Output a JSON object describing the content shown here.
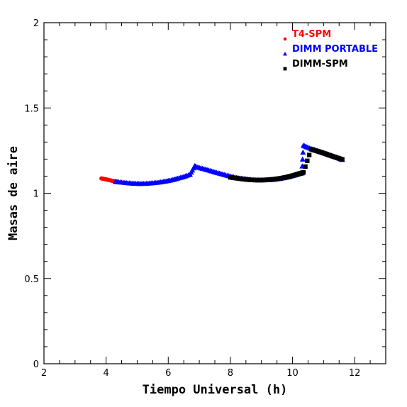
{
  "chart_data": {
    "type": "scatter",
    "xlabel": "Tiempo Universal (h)",
    "ylabel": "Masas de aire",
    "xlim": [
      2,
      13
    ],
    "ylim": [
      0,
      2
    ],
    "xticks": [
      2,
      4,
      6,
      8,
      10,
      12
    ],
    "yticks": [
      0,
      0.5,
      1,
      1.5,
      2
    ],
    "xtick_labels": [
      "2",
      "4",
      "6",
      "8",
      "10",
      "12"
    ],
    "ytick_labels": [
      "0",
      "0.5",
      "1",
      "1.5",
      "2"
    ],
    "legend_position": "top-right",
    "series": [
      {
        "name": "T4-SPM",
        "color": "#ff0000",
        "marker": "circle",
        "x": [
          3.85,
          3.95,
          4.05,
          4.15,
          4.25,
          4.35
        ],
        "y": [
          1.087,
          1.083,
          1.079,
          1.075,
          1.071,
          1.068
        ]
      },
      {
        "name": "DIMM PORTABLE",
        "color": "#0000ff",
        "marker": "triangle",
        "x": [
          4.3,
          4.5,
          4.7,
          4.9,
          5.1,
          5.3,
          5.5,
          5.7,
          5.9,
          6.1,
          6.3,
          6.5,
          6.7,
          6.85,
          6.9,
          7.1,
          7.3,
          7.5,
          7.7,
          7.9,
          8.1,
          8.3,
          8.5,
          8.7,
          8.9,
          9.1,
          9.3,
          9.5,
          9.7,
          9.9,
          10.1,
          10.3,
          10.35,
          10.5,
          10.7,
          10.9,
          11.1,
          11.3,
          11.5,
          11.6
        ],
        "y": [
          1.068,
          1.064,
          1.06,
          1.057,
          1.056,
          1.057,
          1.06,
          1.064,
          1.07,
          1.077,
          1.087,
          1.097,
          1.11,
          1.16,
          1.155,
          1.145,
          1.135,
          1.124,
          1.114,
          1.104,
          1.095,
          1.088,
          1.083,
          1.079,
          1.077,
          1.077,
          1.079,
          1.083,
          1.089,
          1.097,
          1.107,
          1.118,
          1.28,
          1.268,
          1.255,
          1.243,
          1.231,
          1.218,
          1.205,
          1.197
        ]
      },
      {
        "name": "DIMM-SPM",
        "color": "#000000",
        "marker": "square",
        "x": [
          8.0,
          8.2,
          8.4,
          8.6,
          8.8,
          9.0,
          9.2,
          9.4,
          9.6,
          9.8,
          10.0,
          10.2,
          10.35,
          10.6,
          10.8,
          11.0,
          11.2,
          11.4,
          11.6
        ],
        "y": [
          1.093,
          1.088,
          1.083,
          1.079,
          1.077,
          1.077,
          1.079,
          1.082,
          1.087,
          1.094,
          1.103,
          1.114,
          1.122,
          1.258,
          1.247,
          1.235,
          1.222,
          1.21,
          1.198
        ]
      }
    ]
  }
}
